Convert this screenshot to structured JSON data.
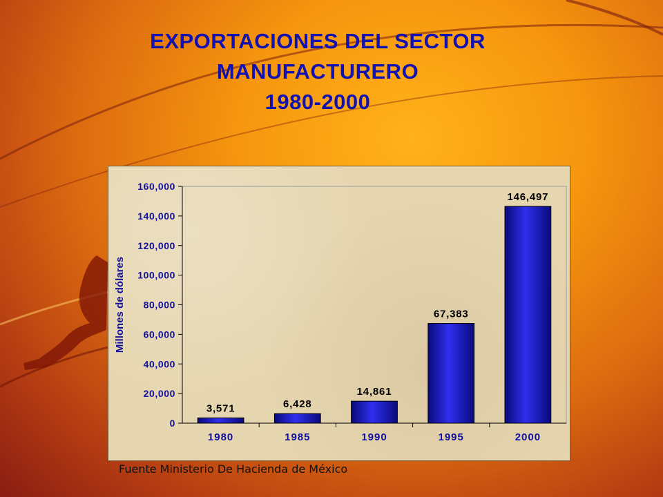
{
  "slide": {
    "title_line1": "EXPORTACIONES DEL SECTOR",
    "title_line2": "MANUFACTURERO",
    "title_line3": "1980-2000",
    "source": "Fuente Ministerio De Hacienda de México"
  },
  "colors": {
    "title": "#1212b0",
    "bar_dark": "#0a0a7a",
    "bar_light": "#2f2ff0",
    "axis_text": "#1010a0"
  },
  "chart_data": {
    "type": "bar",
    "title": "",
    "xlabel": "",
    "ylabel": "Millones de dólares",
    "categories": [
      "1980",
      "1985",
      "1990",
      "1995",
      "2000"
    ],
    "values": [
      3571,
      6428,
      14861,
      67383,
      146497
    ],
    "value_labels": [
      "3,571",
      "6,428",
      "14,861",
      "67,383",
      "146,497"
    ],
    "ylim": [
      0,
      160000
    ],
    "yticks": [
      0,
      20000,
      40000,
      60000,
      80000,
      100000,
      120000,
      140000,
      160000
    ],
    "ytick_labels": [
      "0",
      "20,000",
      "40,000",
      "60,000",
      "80,000",
      "100,000",
      "120,000",
      "140,000",
      "160,000"
    ],
    "grid": false,
    "legend": "none"
  }
}
